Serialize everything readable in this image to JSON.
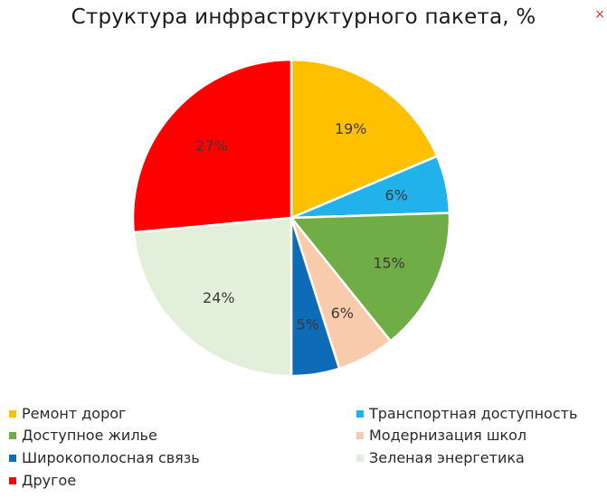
{
  "chart_data": {
    "type": "pie",
    "title": "Структура инфраструктурного пакета, %",
    "slices": [
      {
        "name": "Ремонт дорог",
        "value": 19,
        "label": "19%",
        "color": "#FFC000"
      },
      {
        "name": "Транспортная доступность",
        "value": 6,
        "label": "6%",
        "color": "#21B1EB"
      },
      {
        "name": "Доступное жилье",
        "value": 15,
        "label": "15%",
        "color": "#70AD47"
      },
      {
        "name": "Модернизация школ",
        "value": 6,
        "label": "6%",
        "color": "#F8CBAD"
      },
      {
        "name": "Широкополосная связь",
        "value": 5,
        "label": "5%",
        "color": "#0E6BB8"
      },
      {
        "name": "Зеленая энергетика",
        "value": 24,
        "label": "24%",
        "color": "#E2EFDA"
      },
      {
        "name": "Другое",
        "value": 27,
        "label": "27%",
        "color": "#FF0000"
      }
    ],
    "legend_position": "bottom"
  },
  "close_glyph": "×"
}
